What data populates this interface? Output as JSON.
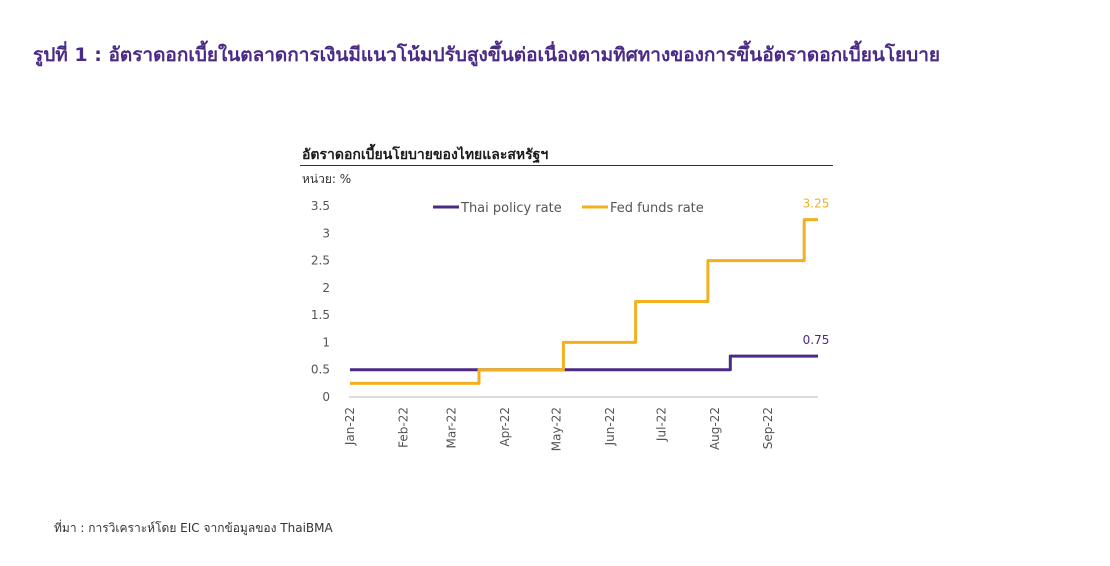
{
  "figure_title": "รูปที่ 1 : อัตราดอกเบี้ยในตลาดการเงินมีแนวโน้มปรับสูงขึ้นต่อเนื่องตามทิศทางของการขึ้นอัตราดอกเบี้ยนโยบาย",
  "source_note": "ที่มา : การวิเคราะห์โดย EIC จากข้อมูลของ ThaiBMA",
  "colors": {
    "title": "#4b2a86",
    "thai": "#4b2a86",
    "fed": "#f2b01e",
    "axis": "#555555",
    "text": "#555555"
  },
  "chart_data": {
    "type": "line",
    "title": "อัตราดอกเบี้ยนโยบายของไทยและสหรัฐฯ",
    "unit_label": "หน่วย: %",
    "x_tick_labels": [
      "Jan-22",
      "Feb-22",
      "Mar-22",
      "Apr-22",
      "May-22",
      "Jun-22",
      "Jul-22",
      "Aug-22",
      "Sep-22"
    ],
    "xlim": [
      "2022-01-01",
      "2022-09-30"
    ],
    "ylim": [
      0,
      3.5
    ],
    "y_ticks": [
      "0",
      "0.5",
      "1",
      "1.5",
      "2",
      "2.5",
      "3",
      "3.5"
    ],
    "grid": false,
    "legend_position": "top",
    "series": [
      {
        "name": "Thai policy rate",
        "color": "#4b2a86",
        "step": true,
        "points": [
          [
            "2022-01-01",
            0.5
          ],
          [
            "2022-08-10",
            0.5
          ],
          [
            "2022-08-10",
            0.75
          ],
          [
            "2022-09-30",
            0.75
          ]
        ],
        "end_label": "0.75"
      },
      {
        "name": "Fed funds rate",
        "color": "#f2b01e",
        "step": true,
        "points": [
          [
            "2022-01-01",
            0.25
          ],
          [
            "2022-03-17",
            0.25
          ],
          [
            "2022-03-17",
            0.5
          ],
          [
            "2022-05-05",
            0.5
          ],
          [
            "2022-05-05",
            1.0
          ],
          [
            "2022-06-16",
            1.0
          ],
          [
            "2022-06-16",
            1.75
          ],
          [
            "2022-07-28",
            1.75
          ],
          [
            "2022-07-28",
            2.5
          ],
          [
            "2022-09-22",
            2.5
          ],
          [
            "2022-09-22",
            3.25
          ],
          [
            "2022-09-30",
            3.25
          ]
        ],
        "end_label": "3.25"
      }
    ]
  }
}
